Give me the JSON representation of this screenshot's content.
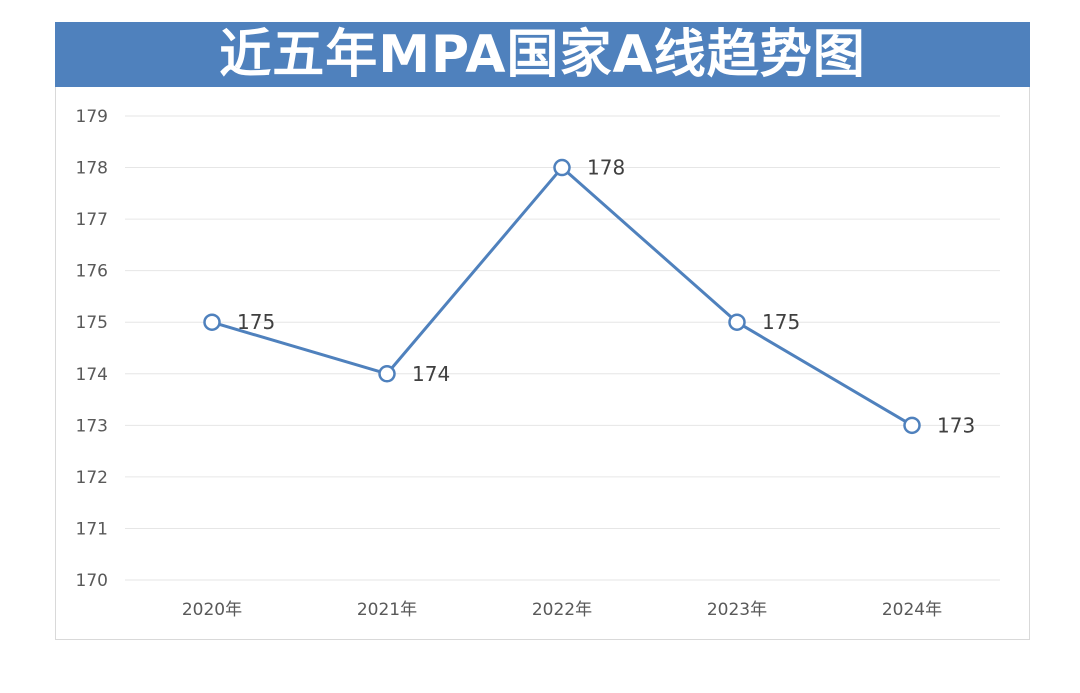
{
  "chart_data": {
    "type": "line",
    "title": "近五年MPA国家A线趋势图",
    "categories": [
      "2020年",
      "2021年",
      "2022年",
      "2023年",
      "2024年"
    ],
    "series": [
      {
        "name": "MPA国家A线",
        "values": [
          175,
          174,
          178,
          175,
          173
        ]
      }
    ],
    "data_labels": [
      "175",
      "174",
      "178",
      "175",
      "173"
    ],
    "y_ticks": [
      "170",
      "171",
      "172",
      "173",
      "174",
      "175",
      "176",
      "177",
      "178",
      "179"
    ],
    "ylim": [
      170,
      179
    ],
    "grid": true,
    "legend": "none",
    "xlabel": "",
    "ylabel": ""
  },
  "colors": {
    "title_bg": "#4f81bd",
    "line": "#4f81bd",
    "grid": "#e6e6e6"
  }
}
